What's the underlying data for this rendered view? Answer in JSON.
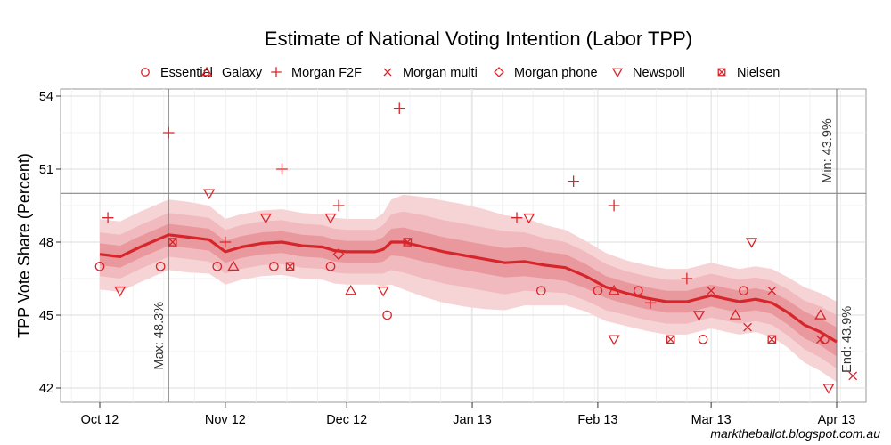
{
  "chart_data": {
    "type": "line",
    "title": "Estimate of National Voting Intention (Labor TPP)",
    "xlabel": "",
    "ylabel": "TPP Vote Share (Percent)",
    "x_unit": "days since 2012-10-01",
    "xlim": [
      -10,
      190
    ],
    "ylim": [
      41.6,
      54.3
    ],
    "yticks": [
      42,
      45,
      48,
      51,
      54
    ],
    "xticks": [
      {
        "day": 0,
        "label": "Oct 12"
      },
      {
        "day": 31,
        "label": "Nov 12"
      },
      {
        "day": 61,
        "label": "Dec 12"
      },
      {
        "day": 92,
        "label": "Jan 13"
      },
      {
        "day": 123,
        "label": "Feb 13"
      },
      {
        "day": 151,
        "label": "Mar 13"
      },
      {
        "day": 182,
        "label": "Apr 13"
      }
    ],
    "grid": true,
    "legend_position": "top",
    "colors": {
      "series": "#d7262b",
      "band_outer": "#f6d4d6",
      "band_mid": "#efb1b5",
      "band_inner": "#e68a90",
      "refline": "#888888"
    },
    "reference_lines": {
      "horizontal": {
        "value": 50
      },
      "vertical": [
        {
          "day": 17
        },
        {
          "day": 182
        }
      ]
    },
    "annotations": [
      {
        "text": "Max: 48.3%",
        "day": 17,
        "value": 43.2
      },
      {
        "text": "Min: 43.9%",
        "day": 182,
        "value": 51.3
      },
      {
        "text": "End: 43.9%",
        "day": 182,
        "value": 43.9
      }
    ],
    "estimate": {
      "name": "Estimate",
      "x": [
        0,
        5,
        10,
        17,
        22,
        27,
        31,
        35,
        40,
        45,
        50,
        55,
        58,
        61,
        65,
        68,
        70,
        72,
        75,
        80,
        85,
        90,
        95,
        100,
        105,
        110,
        115,
        120,
        125,
        130,
        135,
        140,
        145,
        151,
        155,
        158,
        162,
        166,
        170,
        174,
        178,
        182
      ],
      "y": [
        47.5,
        47.4,
        47.8,
        48.3,
        48.2,
        48.1,
        47.6,
        47.8,
        47.95,
        48.0,
        47.85,
        47.8,
        47.65,
        47.6,
        47.6,
        47.6,
        47.7,
        48.0,
        48.0,
        47.8,
        47.6,
        47.45,
        47.3,
        47.15,
        47.2,
        47.05,
        46.95,
        46.6,
        46.15,
        45.9,
        45.7,
        45.55,
        45.55,
        45.8,
        45.65,
        45.55,
        45.65,
        45.5,
        45.1,
        44.6,
        44.3,
        43.9
      ],
      "band_inner_halfwidth": [
        0.45,
        0.45,
        0.45,
        0.45,
        0.45,
        0.45,
        0.45,
        0.45,
        0.45,
        0.45,
        0.45,
        0.45,
        0.45,
        0.45,
        0.45,
        0.45,
        0.5,
        0.55,
        0.6,
        0.6,
        0.6,
        0.6,
        0.6,
        0.6,
        0.6,
        0.55,
        0.55,
        0.5,
        0.45,
        0.45,
        0.45,
        0.45,
        0.45,
        0.45,
        0.45,
        0.45,
        0.45,
        0.45,
        0.5,
        0.55,
        0.55,
        0.6
      ],
      "band_mid_halfwidth": [
        0.9,
        0.9,
        0.9,
        0.9,
        0.9,
        0.9,
        0.9,
        0.9,
        0.9,
        0.9,
        0.9,
        0.9,
        0.9,
        0.9,
        0.9,
        0.9,
        1.0,
        1.15,
        1.25,
        1.3,
        1.3,
        1.3,
        1.3,
        1.3,
        1.2,
        1.1,
        1.05,
        1.0,
        0.95,
        0.9,
        0.9,
        0.9,
        0.9,
        0.9,
        0.9,
        0.9,
        0.9,
        0.9,
        0.95,
        1.0,
        1.05,
        1.1
      ],
      "band_outer_halfwidth": [
        1.45,
        1.45,
        1.45,
        1.45,
        1.45,
        1.4,
        1.35,
        1.35,
        1.35,
        1.35,
        1.35,
        1.35,
        1.35,
        1.35,
        1.35,
        1.35,
        1.5,
        1.75,
        1.95,
        2.05,
        2.1,
        2.1,
        2.05,
        1.95,
        1.8,
        1.65,
        1.55,
        1.45,
        1.4,
        1.35,
        1.35,
        1.35,
        1.35,
        1.35,
        1.35,
        1.35,
        1.35,
        1.4,
        1.45,
        1.55,
        1.6,
        1.65
      ]
    },
    "series": [
      {
        "name": "Essential",
        "symbol": "circle",
        "points": [
          [
            0,
            47
          ],
          [
            15,
            47
          ],
          [
            29,
            47
          ],
          [
            43,
            47
          ],
          [
            57,
            47
          ],
          [
            71,
            45
          ],
          [
            109,
            46
          ],
          [
            123,
            46
          ],
          [
            133,
            46
          ],
          [
            149,
            44
          ],
          [
            159,
            46
          ],
          [
            179,
            44
          ]
        ]
      },
      {
        "name": "Galaxy",
        "symbol": "triangle-up",
        "points": [
          [
            33,
            47
          ],
          [
            62,
            46
          ],
          [
            127,
            46
          ],
          [
            157,
            45
          ],
          [
            178,
            45
          ]
        ]
      },
      {
        "name": "Morgan F2F",
        "symbol": "plus",
        "points": [
          [
            2,
            49
          ],
          [
            17,
            52.5
          ],
          [
            31,
            48
          ],
          [
            45,
            51
          ],
          [
            59,
            49.5
          ],
          [
            74,
            53.5
          ],
          [
            103,
            49
          ],
          [
            117,
            50.5
          ],
          [
            127,
            49.5
          ],
          [
            136,
            45.5
          ],
          [
            145,
            46.5
          ]
        ]
      },
      {
        "name": "Morgan multi",
        "symbol": "x",
        "points": [
          [
            151,
            46
          ],
          [
            160,
            44.5
          ],
          [
            166,
            46
          ],
          [
            178,
            44
          ],
          [
            186,
            42.5
          ]
        ]
      },
      {
        "name": "Morgan phone",
        "symbol": "diamond",
        "points": [
          [
            59,
            47.5
          ]
        ]
      },
      {
        "name": "Newspoll",
        "symbol": "triangle-down",
        "points": [
          [
            5,
            46
          ],
          [
            27,
            50
          ],
          [
            41,
            49
          ],
          [
            57,
            49
          ],
          [
            70,
            46
          ],
          [
            106,
            49
          ],
          [
            127,
            44
          ],
          [
            148,
            45
          ],
          [
            161,
            48
          ],
          [
            180,
            42
          ]
        ]
      },
      {
        "name": "Nielsen",
        "symbol": "square-x",
        "points": [
          [
            18,
            48
          ],
          [
            47,
            47
          ],
          [
            76,
            48
          ],
          [
            141,
            44
          ],
          [
            166,
            44
          ]
        ]
      }
    ],
    "credit": "marktheballot.blogspot.com.au"
  }
}
